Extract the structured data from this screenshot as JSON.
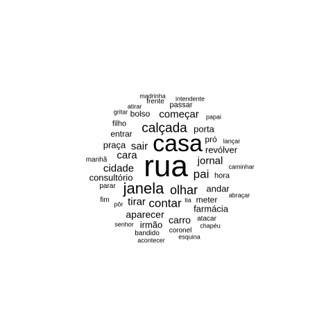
{
  "cloud": {
    "text_color": "#000000",
    "background": "#ffffff",
    "words": [
      {
        "text": "rua",
        "weight": 10
      },
      {
        "text": "casa",
        "weight": 8
      },
      {
        "text": "janela",
        "weight": 6
      },
      {
        "text": "calçada",
        "weight": 5
      },
      {
        "text": "olhar",
        "weight": 5
      },
      {
        "text": "contar",
        "weight": 5
      },
      {
        "text": "pai",
        "weight": 4.5
      },
      {
        "text": "começar",
        "weight": 4
      },
      {
        "text": "jornal",
        "weight": 4
      },
      {
        "text": "cidade",
        "weight": 4
      },
      {
        "text": "cara",
        "weight": 4
      },
      {
        "text": "sair",
        "weight": 4
      },
      {
        "text": "tirar",
        "weight": 4
      },
      {
        "text": "aparecer",
        "weight": 4
      },
      {
        "text": "farmácia",
        "weight": 3.5
      },
      {
        "text": "carro",
        "weight": 3.5
      },
      {
        "text": "irmão",
        "weight": 3.5
      },
      {
        "text": "revólver",
        "weight": 3.5
      },
      {
        "text": "praça",
        "weight": 3.5
      },
      {
        "text": "porta",
        "weight": 3.5
      },
      {
        "text": "andar",
        "weight": 3.5
      },
      {
        "text": "meter",
        "weight": 3.5
      },
      {
        "text": "consultório",
        "weight": 3.5
      },
      {
        "text": "entrar",
        "weight": 3.2
      },
      {
        "text": "bolso",
        "weight": 3.2
      },
      {
        "text": "pró",
        "weight": 3.2
      },
      {
        "text": "filho",
        "weight": 3
      },
      {
        "text": "hora",
        "weight": 3
      },
      {
        "text": "passar",
        "weight": 3
      },
      {
        "text": "atacar",
        "weight": 2.8
      },
      {
        "text": "coronel",
        "weight": 2.8
      },
      {
        "text": "frente",
        "weight": 2.6
      },
      {
        "text": "manhã",
        "weight": 2.6
      },
      {
        "text": "parar",
        "weight": 2.5
      },
      {
        "text": "fim",
        "weight": 2.5
      },
      {
        "text": "bandido",
        "weight": 2.5
      },
      {
        "text": "madrinha",
        "weight": 2.4
      },
      {
        "text": "atirar",
        "weight": 2.4
      },
      {
        "text": "intendente",
        "weight": 2.4
      },
      {
        "text": "papai",
        "weight": 2.3
      },
      {
        "text": "gritar",
        "weight": 2.3
      },
      {
        "text": "lançar",
        "weight": 2.3
      },
      {
        "text": "caminhar",
        "weight": 2.3
      },
      {
        "text": "abraçar",
        "weight": 2.3
      },
      {
        "text": "tia",
        "weight": 2.3
      },
      {
        "text": "pôr",
        "weight": 2.3
      },
      {
        "text": "senhor",
        "weight": 2.3
      },
      {
        "text": "chapéu",
        "weight": 2.3
      },
      {
        "text": "esquina",
        "weight": 2.3
      },
      {
        "text": "acontecer",
        "weight": 2.3
      }
    ]
  }
}
